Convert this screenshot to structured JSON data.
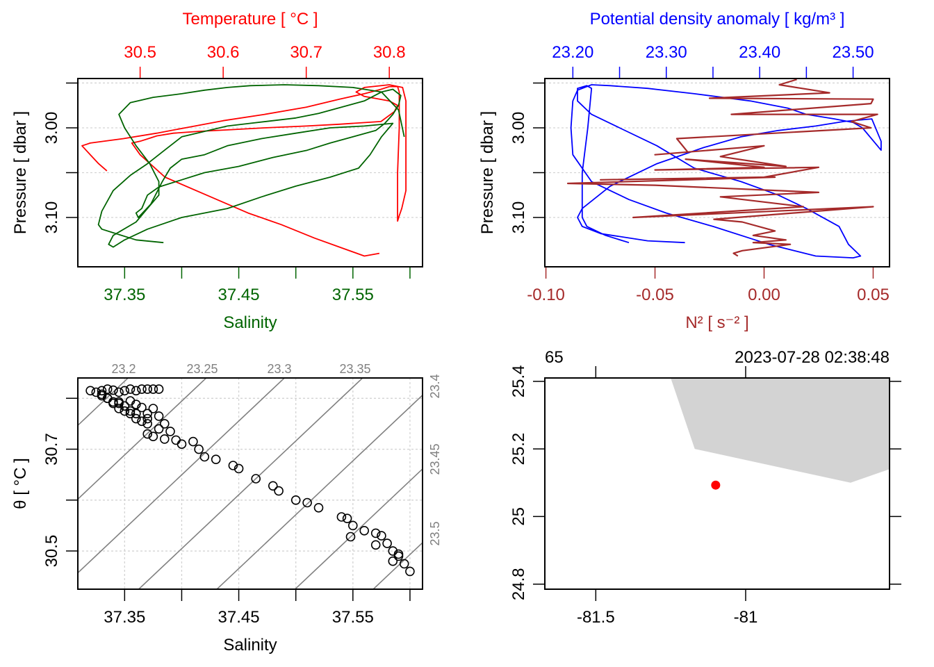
{
  "chart_data": [
    {
      "id": "ts_profile",
      "type": "line",
      "title": "",
      "ylabel": "Pressure [ dbar ]",
      "ylim": [
        3.155,
        2.945
      ],
      "yticks": [
        2.95,
        3.0,
        3.05,
        3.1
      ],
      "ytick_labels": [
        "",
        "3.00",
        "",
        "3.10"
      ],
      "grid": true,
      "top_axis": {
        "label": "Temperature [ °C ]",
        "color": "#ff0000",
        "lim": [
          30.425,
          30.84
        ],
        "ticks": [
          30.5,
          30.6,
          30.7,
          30.8
        ],
        "tick_labels": [
          "30.5",
          "30.6",
          "30.7",
          "30.8"
        ]
      },
      "bottom_axis": {
        "label": "Salinity",
        "color": "#006400",
        "lim": [
          37.309,
          37.611
        ],
        "ticks": [
          37.35,
          37.4,
          37.45,
          37.5,
          37.55,
          37.6
        ],
        "tick_labels": [
          "37.35",
          "",
          "37.45",
          "",
          "37.55",
          ""
        ]
      },
      "series": [
        {
          "name": "Temperature",
          "color": "#ff0000",
          "axis": "top",
          "x": [
            30.46,
            30.45,
            30.44,
            30.43,
            30.44,
            30.48,
            30.52,
            30.56,
            30.6,
            30.65,
            30.7,
            30.74,
            30.77,
            30.79,
            30.8,
            30.81,
            30.812,
            30.812,
            30.81,
            30.81,
            30.81,
            30.812,
            30.815,
            30.82,
            30.82,
            30.82,
            30.816,
            30.8,
            30.77,
            30.76,
            30.77,
            30.8,
            30.81,
            30.806,
            30.79,
            30.74,
            30.7,
            30.65,
            30.61,
            30.57,
            30.54,
            30.52,
            30.51,
            30.5,
            30.49,
            30.5,
            30.53,
            30.58,
            30.63,
            30.67,
            30.71,
            30.74,
            30.77,
            30.788
          ],
          "y": [
            3.048,
            3.04,
            3.03,
            3.02,
            3.017,
            3.012,
            3.006,
            2.999,
            2.992,
            2.985,
            2.977,
            2.968,
            2.962,
            2.957,
            2.954,
            2.954,
            2.96,
            3.0,
            3.05,
            3.1,
            3.104,
            3.098,
            3.09,
            3.07,
            3.0,
            2.97,
            2.955,
            2.952,
            2.955,
            2.96,
            2.965,
            2.97,
            2.975,
            2.982,
            2.993,
            2.996,
            2.998,
            3.0,
            3.002,
            3.004,
            3.006,
            3.009,
            3.012,
            3.015,
            3.017,
            3.03,
            3.055,
            3.075,
            3.095,
            3.108,
            3.123,
            3.133,
            3.143,
            3.14
          ]
        },
        {
          "name": "Salinity",
          "color": "#006400",
          "axis": "bottom",
          "x": [
            37.384,
            37.36,
            37.34,
            37.33,
            37.327,
            37.33,
            37.34,
            37.355,
            37.37,
            37.385,
            37.4,
            37.42,
            37.44,
            37.46,
            37.48,
            37.5,
            37.52,
            37.54,
            37.56,
            37.575,
            37.585,
            37.592,
            37.59,
            37.585,
            37.578,
            37.57,
            37.55,
            37.53,
            37.51,
            37.48,
            37.45,
            37.42,
            37.4,
            37.38,
            37.37,
            37.365,
            37.36,
            37.362,
            37.373,
            37.383,
            37.39,
            37.4,
            37.42,
            37.44,
            37.47,
            37.5,
            37.53,
            37.56,
            37.585,
            37.575,
            37.565,
            37.555,
            37.53,
            37.5,
            37.47,
            37.44,
            37.4,
            37.37,
            37.35,
            37.34,
            37.336,
            37.34,
            37.36,
            37.37,
            37.38,
            37.38,
            37.372,
            37.36,
            37.35,
            37.345,
            37.355,
            37.375,
            37.4,
            37.42,
            37.44,
            37.46,
            37.49,
            37.52,
            37.55,
            37.575,
            37.59,
            37.595
          ],
          "y": [
            3.128,
            3.125,
            3.117,
            3.113,
            3.108,
            3.093,
            3.07,
            3.053,
            3.04,
            3.025,
            3.01,
            3.004,
            2.998,
            2.995,
            2.992,
            2.989,
            2.984,
            2.977,
            2.97,
            2.96,
            2.957,
            2.964,
            2.975,
            2.985,
            2.995,
            3.003,
            3.01,
            3.017,
            3.025,
            3.033,
            3.043,
            3.05,
            3.058,
            3.066,
            3.075,
            3.09,
            3.095,
            3.1,
            3.085,
            3.06,
            3.045,
            3.035,
            3.03,
            3.02,
            3.012,
            3.006,
            3.0,
            2.998,
            2.995,
            3.01,
            3.03,
            3.045,
            3.055,
            3.065,
            3.077,
            3.09,
            3.1,
            3.113,
            3.125,
            3.133,
            3.13,
            3.12,
            3.105,
            3.09,
            3.075,
            3.06,
            3.04,
            3.02,
            3.0,
            2.985,
            2.972,
            2.966,
            2.962,
            2.958,
            2.955,
            2.953,
            2.952,
            2.953,
            2.955,
            2.96,
            2.98,
            3.01
          ]
        }
      ]
    },
    {
      "id": "density_n2_profile",
      "type": "line",
      "title": "",
      "ylabel": "Pressure [ dbar ]",
      "ylim": [
        3.155,
        2.945
      ],
      "yticks": [
        2.95,
        3.0,
        3.05,
        3.1
      ],
      "ytick_labels": [
        "",
        "3.00",
        "",
        "3.10"
      ],
      "grid": true,
      "top_axis": {
        "label": "Potential density anomaly [ kg/m³ ]",
        "color": "#0000ff",
        "lim": [
          23.17,
          23.539
        ],
        "ticks": [
          23.2,
          23.25,
          23.3,
          23.35,
          23.4,
          23.45,
          23.5
        ],
        "tick_labels": [
          "23.20",
          "",
          "23.30",
          "",
          "23.40",
          "",
          "23.50"
        ]
      },
      "bottom_axis": {
        "label": "N² [ s⁻² ]",
        "color": "#a52a2a",
        "lim": [
          -0.1005,
          0.0575
        ],
        "ticks": [
          -0.1,
          -0.05,
          0.0,
          0.05
        ],
        "tick_labels": [
          "-0.10",
          "-0.05",
          "0.00",
          "0.05"
        ]
      },
      "series": [
        {
          "name": "Potential density anomaly",
          "color": "#0000ff",
          "axis": "top",
          "x": [
            23.32,
            23.28,
            23.23,
            23.21,
            23.205,
            23.21,
            23.24,
            23.29,
            23.34,
            23.38,
            23.42,
            23.46,
            23.49,
            23.52,
            23.53,
            23.53,
            23.51,
            23.5,
            23.48,
            23.45,
            23.43,
            23.39,
            23.33,
            23.28,
            23.24,
            23.22,
            23.205,
            23.2,
            23.198,
            23.2,
            23.22,
            23.26,
            23.3,
            23.35,
            23.41,
            23.46,
            23.5,
            23.508,
            23.505,
            23.495,
            23.485,
            23.45,
            23.42,
            23.38,
            23.33,
            23.29,
            23.25,
            23.22,
            23.205,
            23.205,
            23.215,
            23.22,
            23.216,
            23.21,
            23.21,
            23.215,
            23.235,
            23.26
          ],
          "y": [
            3.128,
            3.126,
            3.118,
            3.11,
            3.1,
            3.09,
            3.065,
            3.04,
            3.022,
            3.01,
            3.003,
            2.998,
            2.993,
            2.99,
            3.015,
            3.025,
            3.0,
            2.994,
            2.99,
            2.985,
            2.978,
            2.97,
            2.962,
            2.956,
            2.953,
            2.952,
            2.958,
            2.97,
            3.0,
            3.03,
            3.06,
            3.08,
            3.095,
            3.11,
            3.13,
            3.143,
            3.145,
            3.143,
            3.14,
            3.13,
            3.11,
            3.09,
            3.075,
            3.06,
            3.045,
            3.02,
            3.0,
            2.985,
            2.97,
            2.956,
            2.953,
            2.956,
            3.0,
            3.05,
            3.1,
            3.11,
            3.12,
            3.128
          ]
        },
        {
          "name": "N2",
          "color": "#a52a2a",
          "axis": "bottom",
          "x": [
            0.015,
            0.007,
            0.03,
            -0.025,
            0.05,
            0.049,
            -0.015,
            0.052,
            0.04,
            0.049,
            -0.04,
            -0.035,
            -0.05,
            0.0,
            -0.02,
            0.01,
            -0.036,
            0.0,
            -0.05,
            0.025,
            0.0,
            -0.075,
            0.005,
            -0.09,
            -0.05,
            0.025,
            -0.02,
            0.018,
            -0.06,
            0.05,
            -0.023,
            -0.01,
            0.005,
            -0.005,
            0.01,
            -0.005,
            0.012,
            -0.01,
            -0.014,
            -0.012
          ],
          "y": [
            2.946,
            2.952,
            2.961,
            2.967,
            2.968,
            2.973,
            2.985,
            2.985,
            2.993,
            3.0,
            3.012,
            3.027,
            3.03,
            3.02,
            3.032,
            3.043,
            3.035,
            3.044,
            3.047,
            3.044,
            3.055,
            3.058,
            3.055,
            3.062,
            3.064,
            3.072,
            3.077,
            3.088,
            3.1,
            3.088,
            3.102,
            3.105,
            3.115,
            3.12,
            3.125,
            3.128,
            3.13,
            3.137,
            3.14,
            3.143
          ]
        }
      ]
    },
    {
      "id": "ts_diagram",
      "type": "scatter",
      "title": "",
      "xlabel": "Salinity",
      "ylabel": "θ [ °C ]",
      "xlim": [
        37.309,
        37.611
      ],
      "ylim": [
        30.425,
        30.84
      ],
      "xticks": [
        37.35,
        37.4,
        37.45,
        37.5,
        37.55,
        37.6
      ],
      "xtick_labels": [
        "37.35",
        "",
        "37.45",
        "",
        "37.55",
        ""
      ],
      "yticks": [
        30.5,
        30.6,
        30.7,
        30.8
      ],
      "ytick_labels": [
        "30.5",
        "",
        "30.7",
        ""
      ],
      "grid": true,
      "isopycnals": {
        "color": "#808080",
        "levels": [
          23.15,
          23.2,
          23.25,
          23.3,
          23.35,
          23.4,
          23.45,
          23.5,
          23.55
        ],
        "top_labels": [
          "23.2",
          "23.25",
          "23.3",
          "23.35"
        ],
        "right_labels": [
          "23.4",
          "23.45",
          "23.5"
        ]
      },
      "marker": "open-circle",
      "points_s": [
        37.32,
        37.325,
        37.33,
        37.335,
        37.34,
        37.345,
        37.35,
        37.355,
        37.36,
        37.365,
        37.37,
        37.375,
        37.38,
        37.33,
        37.335,
        37.34,
        37.345,
        37.35,
        37.355,
        37.36,
        37.37,
        37.33,
        37.335,
        37.345,
        37.355,
        37.36,
        37.365,
        37.37,
        37.34,
        37.345,
        37.35,
        37.355,
        37.36,
        37.365,
        37.37,
        37.375,
        37.38,
        37.385,
        37.39,
        37.38,
        37.37,
        37.375,
        37.385,
        37.395,
        37.4,
        37.41,
        37.415,
        37.42,
        37.43,
        37.445,
        37.45,
        37.465,
        37.48,
        37.485,
        37.5,
        37.51,
        37.52,
        37.54,
        37.545,
        37.55,
        37.56,
        37.57,
        37.575,
        37.58,
        37.585,
        37.59,
        37.59,
        37.595,
        37.6,
        37.548,
        37.585,
        37.57
      ],
      "points_t": [
        30.815,
        30.812,
        30.815,
        30.818,
        30.816,
        30.812,
        30.815,
        30.818,
        30.815,
        30.818,
        30.818,
        30.818,
        30.818,
        30.808,
        30.8,
        30.793,
        30.79,
        30.785,
        30.775,
        30.77,
        30.76,
        30.805,
        30.8,
        30.793,
        30.795,
        30.788,
        30.782,
        30.77,
        30.79,
        30.78,
        30.775,
        30.77,
        30.76,
        30.755,
        30.75,
        30.78,
        30.765,
        30.75,
        30.735,
        30.74,
        30.73,
        30.725,
        30.72,
        30.718,
        30.71,
        30.715,
        30.7,
        30.685,
        30.68,
        30.668,
        30.662,
        30.642,
        30.628,
        30.618,
        30.6,
        30.595,
        30.585,
        30.567,
        30.564,
        30.55,
        30.54,
        30.535,
        30.53,
        30.515,
        30.5,
        30.494,
        30.49,
        30.475,
        30.46,
        30.528,
        30.48,
        30.512
      ]
    },
    {
      "id": "station_map",
      "type": "scatter",
      "title": "",
      "xlim": [
        -81.67,
        -80.52
      ],
      "ylim": [
        24.785,
        25.41
      ],
      "xticks": [
        -81.5,
        -81.0
      ],
      "xtick_labels": [
        "-81.5",
        "-81"
      ],
      "yticks": [
        24.8,
        25.0,
        25.2,
        25.4
      ],
      "ytick_labels": [
        "24.8",
        "25",
        "25.2",
        "25.4"
      ],
      "top_left_label": "65",
      "top_right_label": "2023-07-28 02:38:48",
      "land": {
        "color": "#d3d3d3",
        "polygon_lon": [
          -81.25,
          -81.17,
          -80.65,
          -80.52,
          -80.52
        ],
        "polygon_lat": [
          25.41,
          25.2,
          25.1,
          25.14,
          25.41
        ]
      },
      "station": {
        "lon": -81.1,
        "lat": 25.093,
        "color": "#ff0000"
      }
    }
  ]
}
